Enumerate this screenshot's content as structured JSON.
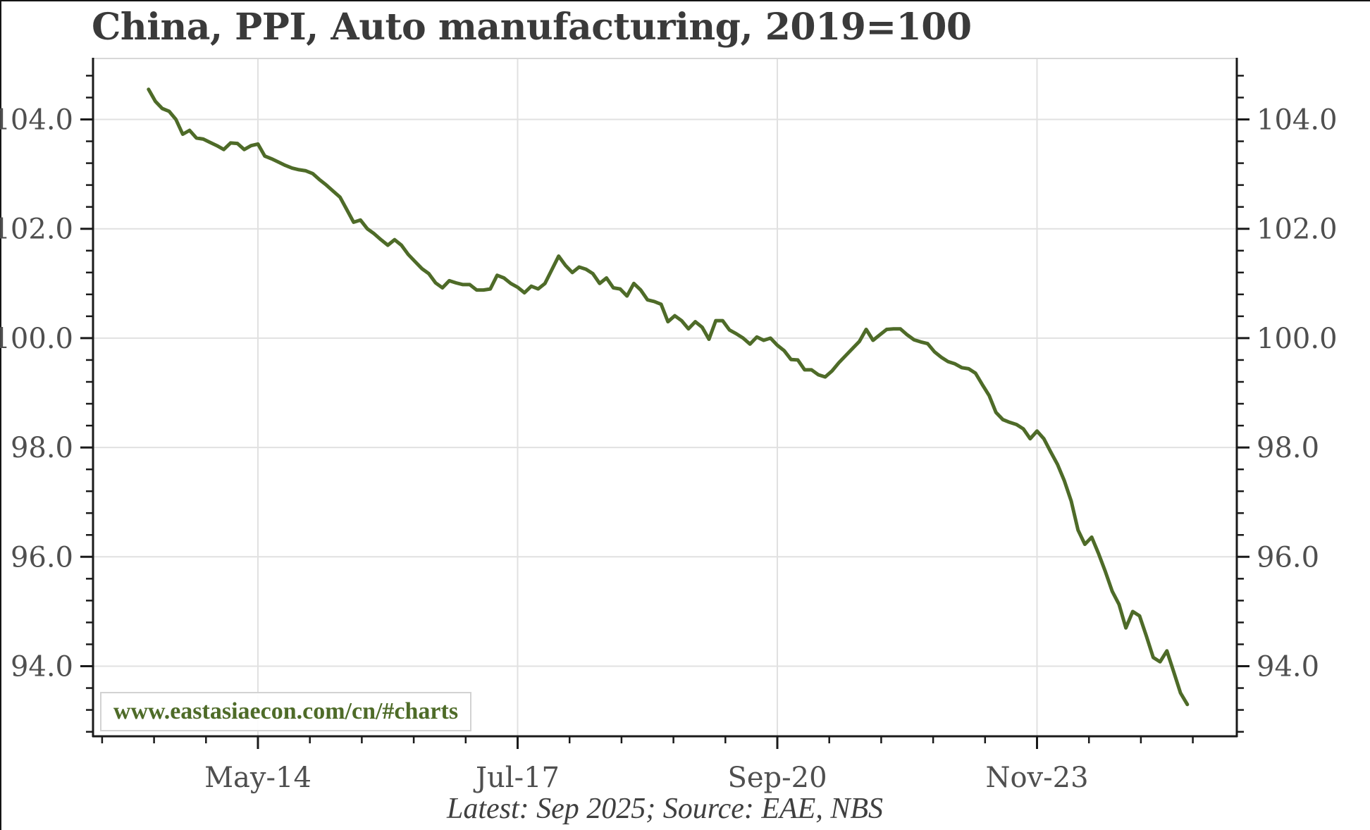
{
  "header": {
    "title": "China, PPI, Auto manufacturing, 2019=100"
  },
  "footer": {
    "caption": "Latest: Sep 2025; Source: EAE, NBS",
    "watermark": "www.eastasiaecon.com/cn/#charts"
  },
  "colors": {
    "line": "#4e6b28",
    "gridline": "#e1e1e1",
    "spine": "#1a1a1a",
    "top_spine": "#d8d8d8",
    "tick_label": "#4f4f4f",
    "title_text": "#3a3a3a",
    "watermark_text": "#4e6b28"
  },
  "chart_data": {
    "type": "line",
    "title": "China, PPI, Auto manufacturing, 2019=100",
    "xlabel": "",
    "ylabel": "",
    "frequency": "monthly",
    "x_start": "2013-01",
    "x_end": "2025-09",
    "grid": true,
    "legend_position": "none",
    "ylim": [
      92.7,
      105.1
    ],
    "y_ticks": [
      {
        "label": "104.0",
        "value": 104.0
      },
      {
        "label": "102.0",
        "value": 102.0
      },
      {
        "label": "100.0",
        "value": 100.0
      },
      {
        "label": "98.0",
        "value": 98.0
      },
      {
        "label": "96.0",
        "value": 96.0
      },
      {
        "label": "94.0",
        "value": 94.0
      }
    ],
    "x_ticks": [
      {
        "label": "May-14",
        "month_index": 16
      },
      {
        "label": "Jul-17",
        "month_index": 54
      },
      {
        "label": "Sep-20",
        "month_index": 92
      },
      {
        "label": "Nov-23",
        "month_index": 130
      }
    ],
    "series": [
      {
        "name": "China PPI Auto manufacturing (2019=100)",
        "color": "#4e6b28",
        "values": [
          104.55,
          104.33,
          104.2,
          104.15,
          104.0,
          103.73,
          103.8,
          103.66,
          103.64,
          103.58,
          103.52,
          103.45,
          103.57,
          103.56,
          103.45,
          103.52,
          103.55,
          103.33,
          103.28,
          103.22,
          103.16,
          103.11,
          103.08,
          103.06,
          103.01,
          102.9,
          102.8,
          102.69,
          102.58,
          102.35,
          102.12,
          102.16,
          102.0,
          101.91,
          101.8,
          101.7,
          101.8,
          101.7,
          101.53,
          101.4,
          101.27,
          101.18,
          101.01,
          100.92,
          101.05,
          101.01,
          100.98,
          100.98,
          100.88,
          100.88,
          100.9,
          101.15,
          101.1,
          101.0,
          100.93,
          100.83,
          100.95,
          100.9,
          101.0,
          101.25,
          101.5,
          101.33,
          101.2,
          101.3,
          101.26,
          101.18,
          101.0,
          101.1,
          100.92,
          100.9,
          100.77,
          101.0,
          100.88,
          100.7,
          100.67,
          100.62,
          100.3,
          100.41,
          100.32,
          100.17,
          100.3,
          100.2,
          99.98,
          100.32,
          100.32,
          100.15,
          100.08,
          100.0,
          99.89,
          100.02,
          99.96,
          100.0,
          99.87,
          99.77,
          99.61,
          99.6,
          99.42,
          99.42,
          99.33,
          99.29,
          99.4,
          99.55,
          99.68,
          99.81,
          99.94,
          100.16,
          99.96,
          100.06,
          100.16,
          100.17,
          100.17,
          100.06,
          99.97,
          99.93,
          99.9,
          99.75,
          99.65,
          99.57,
          99.53,
          99.46,
          99.44,
          99.36,
          99.15,
          98.95,
          98.64,
          98.51,
          98.46,
          98.42,
          98.34,
          98.16,
          98.3,
          98.16,
          97.92,
          97.69,
          97.39,
          97.02,
          96.49,
          96.23,
          96.36,
          96.06,
          95.73,
          95.37,
          95.13,
          94.7,
          95.0,
          94.92,
          94.55,
          94.16,
          94.08,
          94.28,
          93.9,
          93.51,
          93.3
        ]
      }
    ]
  }
}
